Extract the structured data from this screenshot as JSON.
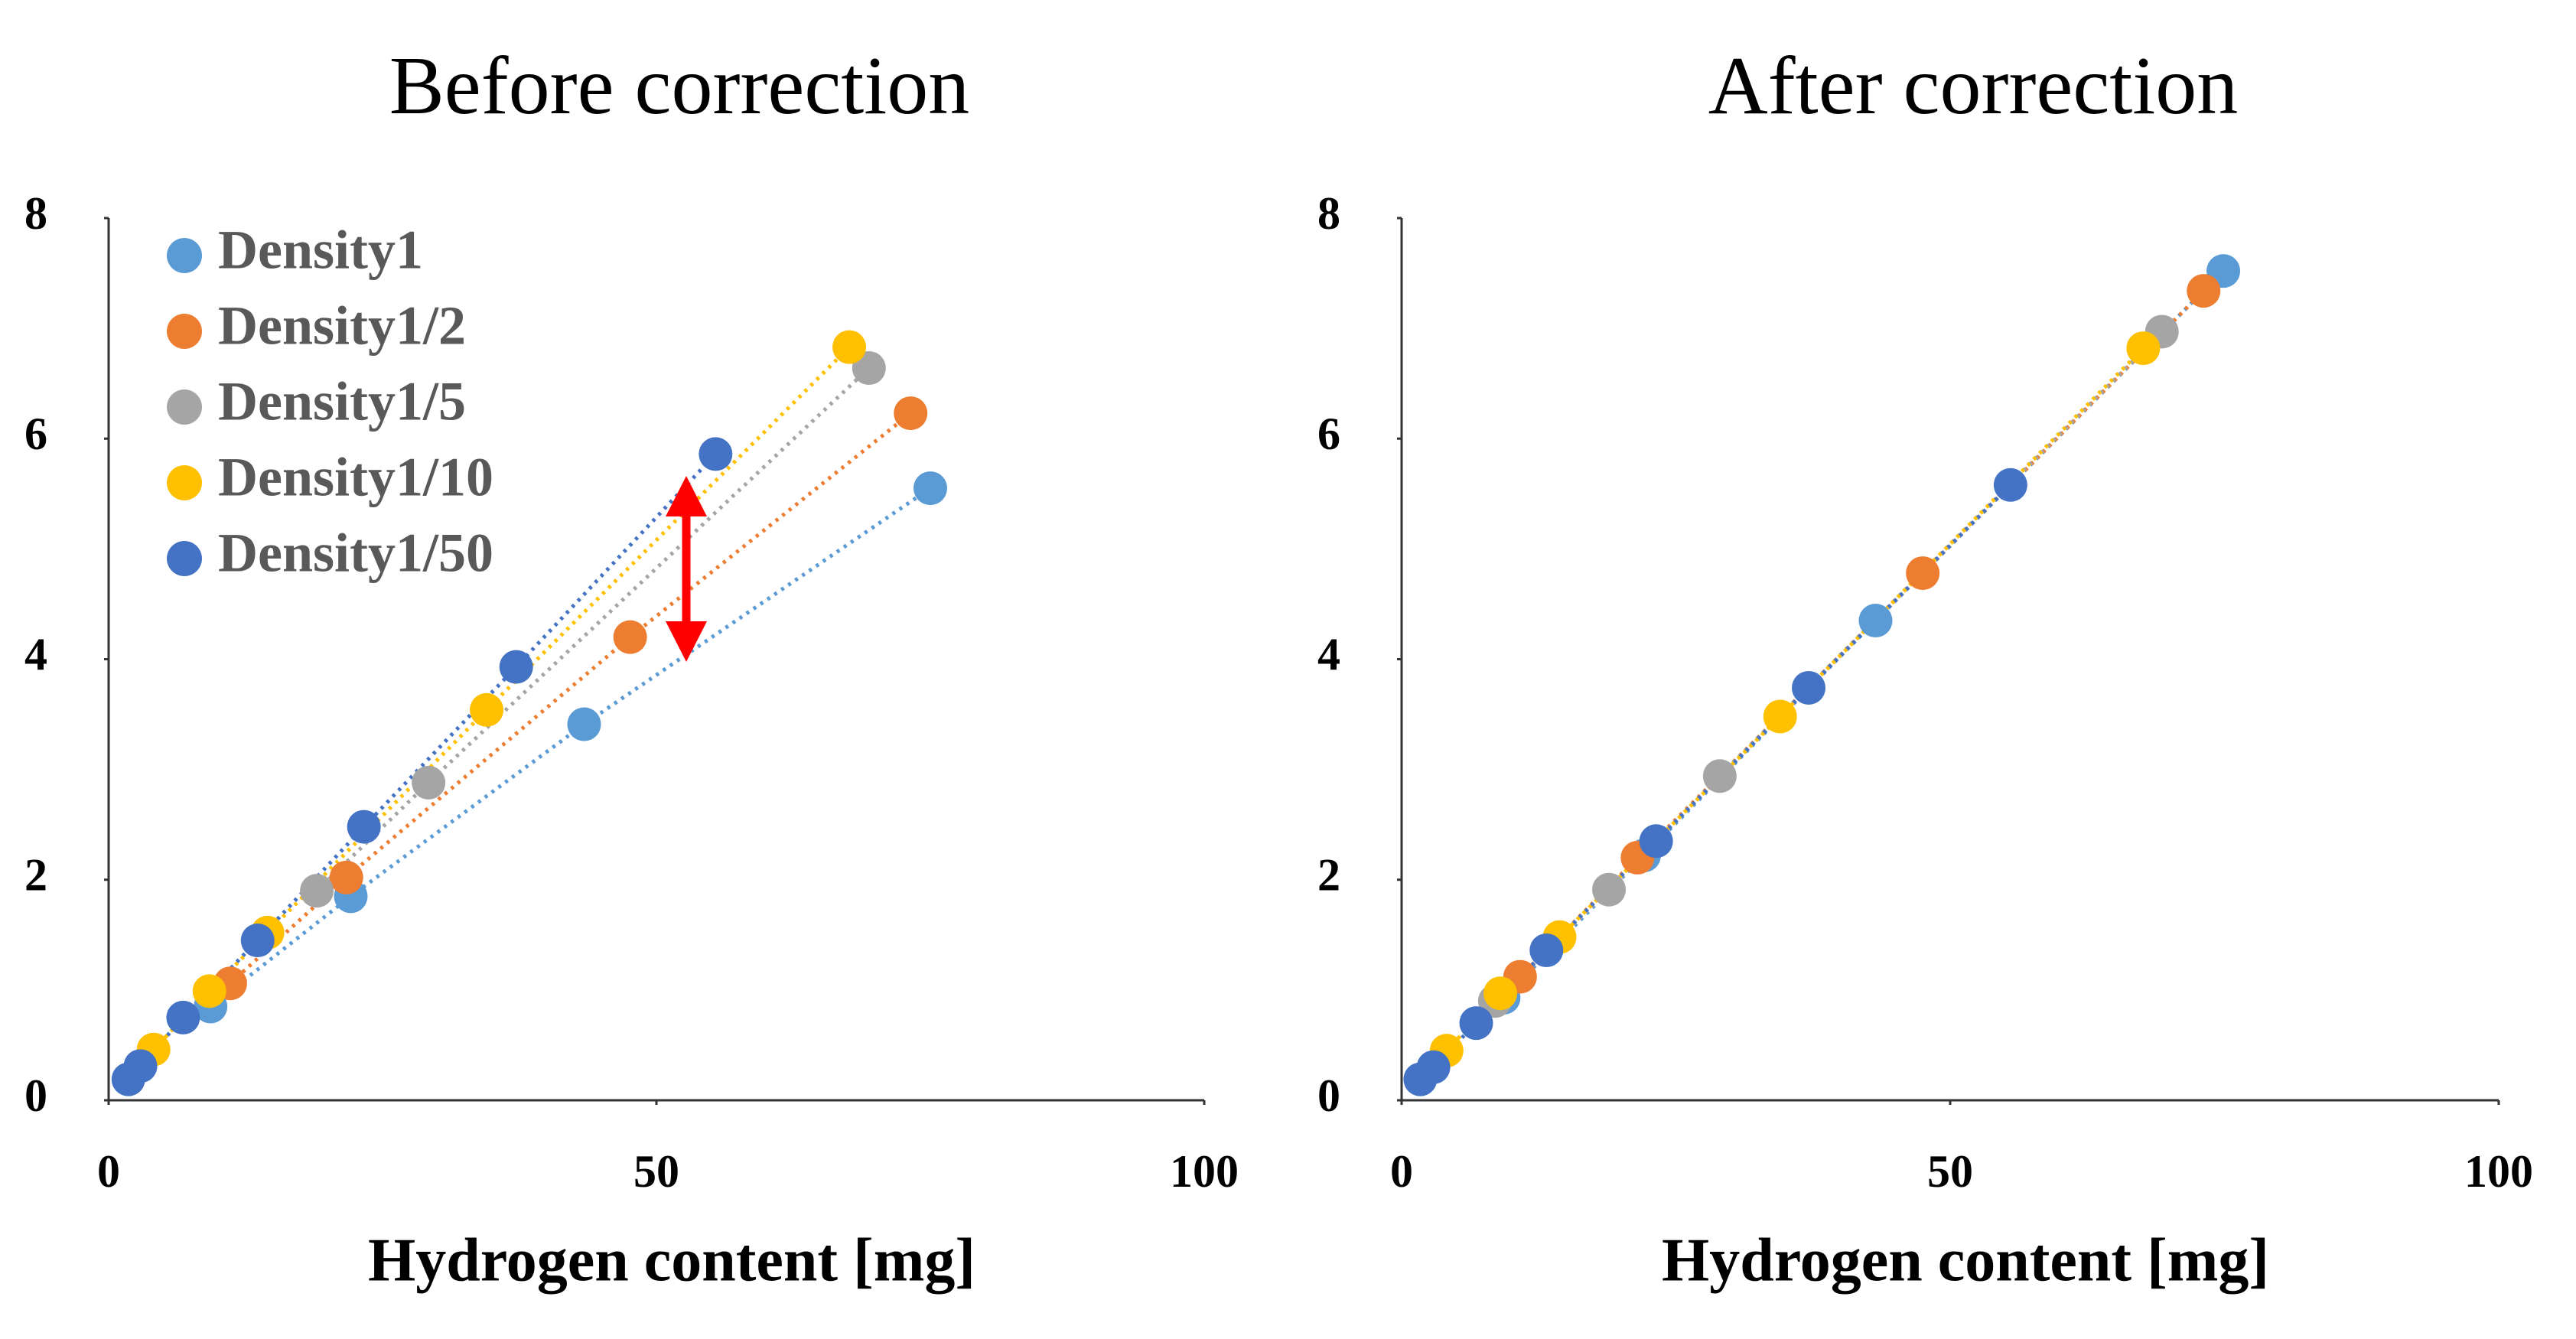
{
  "chart_data": [
    {
      "type": "scatter",
      "title": "Before correction",
      "x_label": "Hydrogen content [mg]",
      "xlim": [
        0,
        100
      ],
      "ylim": [
        0,
        8
      ],
      "xticks": [
        0,
        50,
        100
      ],
      "yticks": [
        0,
        2,
        4,
        6,
        8
      ],
      "grid": false,
      "legend": "top-left",
      "series": [
        {
          "name": "Density1",
          "color": "#5b9bd5",
          "x": [
            9.3,
            22.1,
            43.4,
            75.0
          ],
          "y": [
            0.85,
            1.85,
            3.41,
            5.55
          ]
        },
        {
          "name": "Density1/2",
          "color": "#ed7d31",
          "x": [
            11.1,
            21.7,
            47.6,
            73.2
          ],
          "y": [
            1.06,
            2.02,
            4.2,
            6.23
          ]
        },
        {
          "name": "Density1/5",
          "color": "#a5a5a5",
          "x": [
            19.0,
            29.2,
            69.4
          ],
          "y": [
            1.9,
            2.88,
            6.64
          ]
        },
        {
          "name": "Density1/10",
          "color": "#ffc000",
          "x": [
            4.1,
            9.2,
            14.5,
            34.5,
            67.6
          ],
          "y": [
            0.46,
            0.99,
            1.52,
            3.54,
            6.83
          ]
        },
        {
          "name": "Density1/50",
          "color": "#4472c4",
          "x": [
            1.8,
            2.9,
            6.8,
            13.6,
            23.3,
            37.2,
            55.4
          ],
          "y": [
            0.19,
            0.31,
            0.75,
            1.45,
            2.48,
            3.93,
            5.86
          ]
        }
      ]
    },
    {
      "type": "scatter",
      "title": "After correction",
      "x_label": "Hydrogen content [mg]",
      "xlim": [
        0,
        100
      ],
      "ylim": [
        0,
        8
      ],
      "xticks": [
        0,
        50,
        100
      ],
      "yticks": [
        0,
        2,
        4,
        6,
        8
      ],
      "grid": false,
      "series": [
        {
          "color": "#5b9bd5",
          "x": [
            9.3,
            22.1,
            43.2,
            74.9
          ],
          "y": [
            0.93,
            2.22,
            4.35,
            7.52
          ]
        },
        {
          "color": "#ed7d31",
          "x": [
            10.8,
            21.5,
            47.5,
            73.1
          ],
          "y": [
            1.12,
            2.2,
            4.78,
            7.34
          ]
        },
        {
          "color": "#a5a5a5",
          "x": [
            8.5,
            18.9,
            29.0,
            69.3
          ],
          "y": [
            0.9,
            1.91,
            2.94,
            6.97
          ]
        },
        {
          "color": "#ffc000",
          "x": [
            4.1,
            9.0,
            14.4,
            34.5,
            67.6
          ],
          "y": [
            0.45,
            0.97,
            1.48,
            3.48,
            6.82
          ]
        },
        {
          "color": "#4472c4",
          "x": [
            1.7,
            2.9,
            6.8,
            13.2,
            23.2,
            37.1,
            55.5
          ],
          "y": [
            0.19,
            0.3,
            0.7,
            1.36,
            2.35,
            3.74,
            5.58
          ]
        }
      ]
    }
  ]
}
